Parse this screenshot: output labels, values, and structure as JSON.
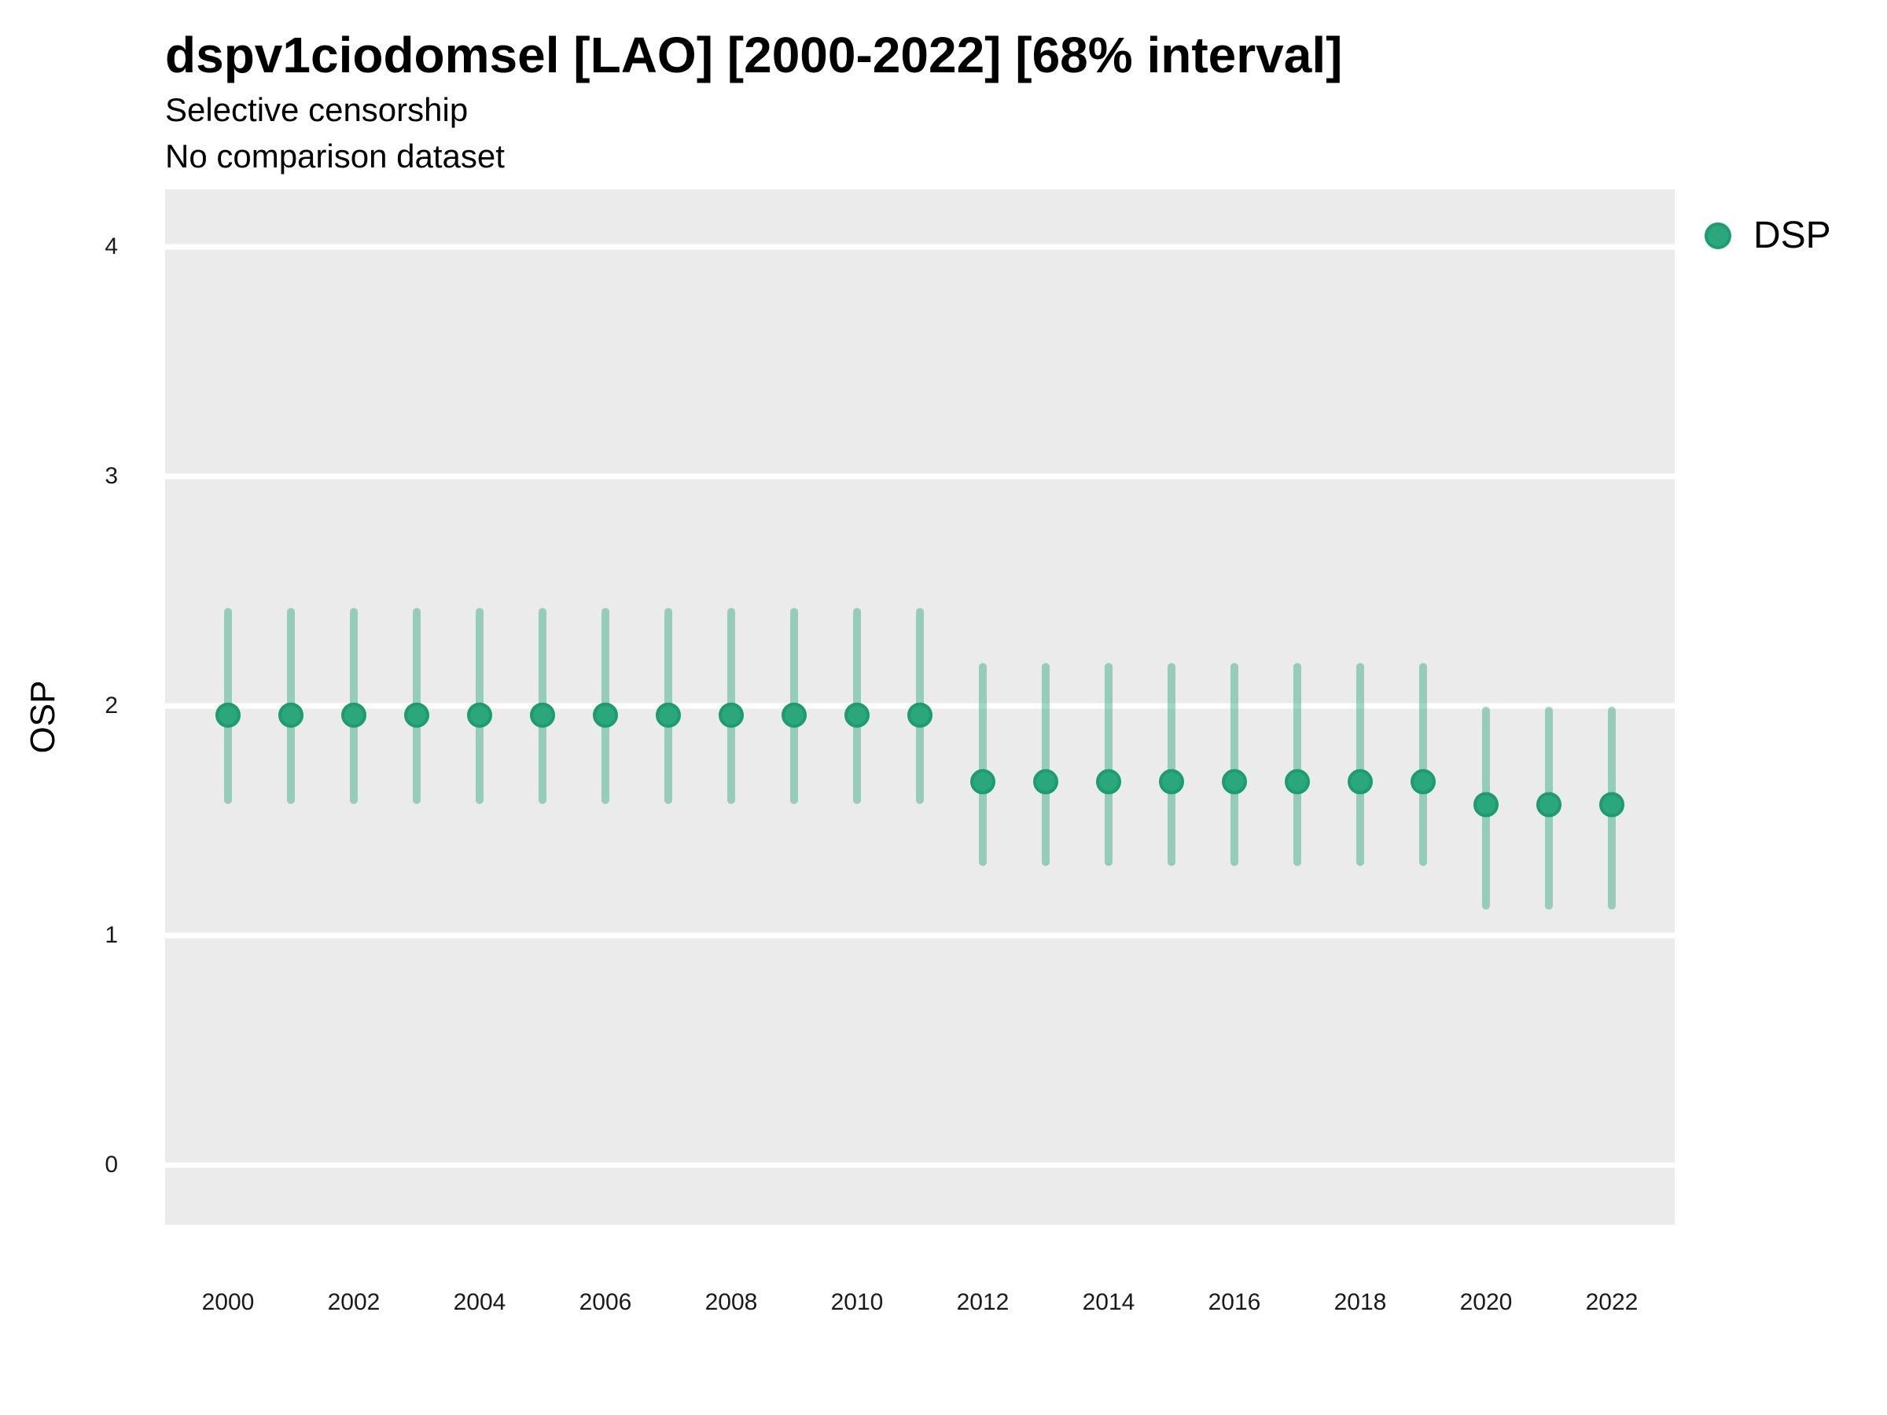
{
  "header": {
    "title": "dspv1ciodomsel [LAO] [2000-2022] [68% interval]",
    "subtitle_line1": "Selective censorship",
    "subtitle_line2": "No comparison dataset"
  },
  "legend": {
    "position": "right-top",
    "items": [
      {
        "label": "DSP",
        "color": "#2AA87C",
        "edge_color": "#1E9B70"
      }
    ]
  },
  "panel": {
    "background_color": "#EBEBEB",
    "gridline_color": "#FFFFFF"
  },
  "chart_data": {
    "type": "pointrange",
    "title": "dspv1ciodomsel [LAO] [2000-2022] [68% interval]",
    "subtitle": [
      "Selective censorship",
      "No comparison dataset"
    ],
    "xlabel": "",
    "ylabel": "OSP",
    "ylim": [
      -0.26,
      4.25
    ],
    "yticks": [
      0,
      1,
      2,
      3,
      4
    ],
    "xticks": [
      2000,
      2002,
      2004,
      2006,
      2008,
      2010,
      2012,
      2014,
      2016,
      2018,
      2020,
      2022
    ],
    "grid": "horizontal major gridlines, white on gray panel",
    "legend_position": "right-top",
    "interval_label": "68% interval",
    "series": [
      {
        "name": "DSP",
        "point_color": "#2AA87C",
        "point_edge_color": "#1E9B70",
        "interval_color": "#2AA87C",
        "interval_opacity": 0.45,
        "points": [
          {
            "year": 2000,
            "est": 1.96,
            "lo": 1.59,
            "hi": 2.41
          },
          {
            "year": 2001,
            "est": 1.96,
            "lo": 1.59,
            "hi": 2.41
          },
          {
            "year": 2002,
            "est": 1.96,
            "lo": 1.59,
            "hi": 2.41
          },
          {
            "year": 2003,
            "est": 1.96,
            "lo": 1.59,
            "hi": 2.41
          },
          {
            "year": 2004,
            "est": 1.96,
            "lo": 1.59,
            "hi": 2.41
          },
          {
            "year": 2005,
            "est": 1.96,
            "lo": 1.59,
            "hi": 2.41
          },
          {
            "year": 2006,
            "est": 1.96,
            "lo": 1.59,
            "hi": 2.41
          },
          {
            "year": 2007,
            "est": 1.96,
            "lo": 1.59,
            "hi": 2.41
          },
          {
            "year": 2008,
            "est": 1.96,
            "lo": 1.59,
            "hi": 2.41
          },
          {
            "year": 2009,
            "est": 1.96,
            "lo": 1.59,
            "hi": 2.41
          },
          {
            "year": 2010,
            "est": 1.96,
            "lo": 1.59,
            "hi": 2.41
          },
          {
            "year": 2011,
            "est": 1.96,
            "lo": 1.59,
            "hi": 2.41
          },
          {
            "year": 2012,
            "est": 1.67,
            "lo": 1.32,
            "hi": 2.17
          },
          {
            "year": 2013,
            "est": 1.67,
            "lo": 1.32,
            "hi": 2.17
          },
          {
            "year": 2014,
            "est": 1.67,
            "lo": 1.32,
            "hi": 2.17
          },
          {
            "year": 2015,
            "est": 1.67,
            "lo": 1.32,
            "hi": 2.17
          },
          {
            "year": 2016,
            "est": 1.67,
            "lo": 1.32,
            "hi": 2.17
          },
          {
            "year": 2017,
            "est": 1.67,
            "lo": 1.32,
            "hi": 2.17
          },
          {
            "year": 2018,
            "est": 1.67,
            "lo": 1.32,
            "hi": 2.17
          },
          {
            "year": 2019,
            "est": 1.67,
            "lo": 1.32,
            "hi": 2.17
          },
          {
            "year": 2020,
            "est": 1.57,
            "lo": 1.13,
            "hi": 1.98
          },
          {
            "year": 2021,
            "est": 1.57,
            "lo": 1.13,
            "hi": 1.98
          },
          {
            "year": 2022,
            "est": 1.57,
            "lo": 1.13,
            "hi": 1.98
          }
        ]
      }
    ]
  }
}
